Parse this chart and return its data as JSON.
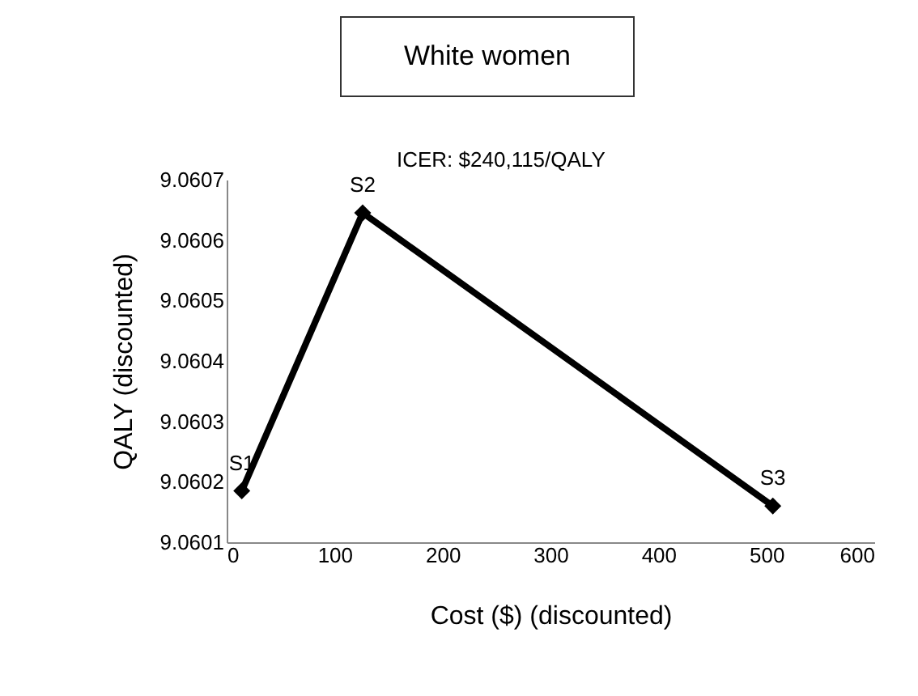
{
  "chart_data": {
    "type": "line",
    "title": "White women",
    "xlabel": "Cost ($) (discounted)",
    "ylabel": "QALY (discounted)",
    "x": [
      14,
      126,
      506
    ],
    "series": [
      {
        "color": "#000000",
        "values": [
          9.060185,
          9.060645,
          9.06016
        ]
      }
    ],
    "xlim": [
      0,
      600
    ],
    "xticks": [
      0,
      100,
      200,
      300,
      400,
      500,
      600
    ],
    "ylim": [
      9.0601,
      9.0607
    ],
    "yticks": [
      9.0601,
      9.0602,
      9.0603,
      9.0604,
      9.0605,
      9.0606,
      9.0607
    ],
    "marker": "diamond",
    "line_style": "solid",
    "grid": false,
    "annotations": [
      {
        "text": "S1",
        "x": 14,
        "y": 9.060185
      },
      {
        "text": "S2",
        "x": 126,
        "y": 9.060645
      },
      {
        "text": "S3",
        "x": 506,
        "y": 9.06016
      },
      "ICER: $240,115/QALY"
    ]
  }
}
